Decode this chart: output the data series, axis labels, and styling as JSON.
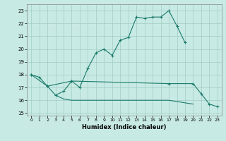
{
  "xlabel": "Humidex (Indice chaleur)",
  "bg_color": "#c8eae4",
  "grid_color": "#a0ccc4",
  "line_color": "#1a7a6a",
  "xlim": [
    -0.5,
    23.5
  ],
  "ylim": [
    14.8,
    23.5
  ],
  "yticks": [
    15,
    16,
    17,
    18,
    19,
    20,
    21,
    22,
    23
  ],
  "xticks": [
    0,
    1,
    2,
    3,
    4,
    5,
    6,
    7,
    8,
    9,
    10,
    11,
    12,
    13,
    14,
    15,
    16,
    17,
    18,
    19,
    20,
    21,
    22,
    23
  ],
  "line1_x": [
    0,
    1,
    2,
    3,
    4,
    5,
    6,
    7,
    8,
    9,
    10,
    11,
    12,
    13,
    14,
    15,
    16,
    17,
    18,
    19
  ],
  "line1_y": [
    18.0,
    17.8,
    17.1,
    16.4,
    16.7,
    17.5,
    17.0,
    18.5,
    19.7,
    20.0,
    19.5,
    20.7,
    20.9,
    22.5,
    22.4,
    22.5,
    22.5,
    23.0,
    21.8,
    20.5
  ],
  "line2_x": [
    0,
    2,
    5,
    17,
    20,
    21,
    22,
    23
  ],
  "line2_y": [
    18.0,
    17.1,
    17.5,
    17.3,
    17.3,
    16.5,
    15.7,
    15.5
  ],
  "line3_x": [
    3,
    4,
    5,
    6,
    7,
    8,
    9,
    10,
    11,
    12,
    13,
    14,
    15,
    16,
    17,
    18,
    19,
    20
  ],
  "line3_y": [
    16.4,
    16.1,
    16.0,
    16.0,
    16.0,
    16.0,
    16.0,
    16.0,
    16.0,
    16.0,
    16.0,
    16.0,
    16.0,
    16.0,
    16.0,
    15.9,
    15.8,
    15.7
  ]
}
